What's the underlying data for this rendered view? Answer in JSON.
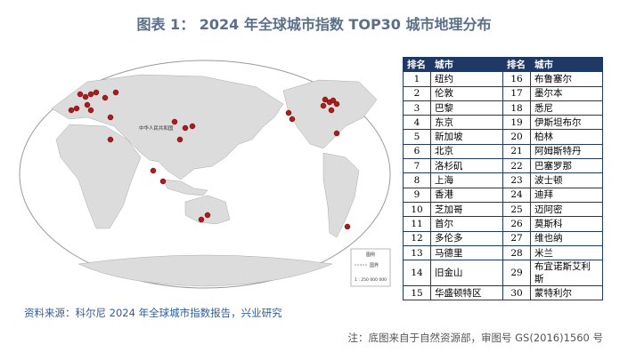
{
  "header": {
    "title": "图表 1：  2024 年全球城市指数 TOP30 城市地理分布"
  },
  "map": {
    "labels": [
      "中华人民共和国",
      "图例",
      "国界",
      "1 : 250 000 000"
    ]
  },
  "table": {
    "headers": [
      "排名",
      "城市",
      "排名",
      "城市"
    ],
    "rows": [
      [
        "1",
        "纽约",
        "16",
        "布鲁塞尔"
      ],
      [
        "2",
        "伦敦",
        "17",
        "墨尔本"
      ],
      [
        "3",
        "巴黎",
        "18",
        "悉尼"
      ],
      [
        "4",
        "东京",
        "19",
        "伊斯坦布尔"
      ],
      [
        "5",
        "新加坡",
        "20",
        "柏林"
      ],
      [
        "6",
        "北京",
        "21",
        "阿姆斯特丹"
      ],
      [
        "7",
        "洛杉矶",
        "22",
        "巴塞罗那"
      ],
      [
        "8",
        "上海",
        "23",
        "波士顿"
      ],
      [
        "9",
        "香港",
        "24",
        "迪拜"
      ],
      [
        "10",
        "芝加哥",
        "25",
        "迈阿密"
      ],
      [
        "11",
        "首尔",
        "26",
        "莫斯科"
      ],
      [
        "12",
        "多伦多",
        "27",
        "维也纳"
      ],
      [
        "13",
        "马德里",
        "28",
        "米兰"
      ],
      [
        "14",
        "旧金山",
        "29",
        "布宜诺斯艾利斯"
      ],
      [
        "15",
        "华盛顿特区",
        "30",
        "蒙特利尔"
      ]
    ]
  },
  "source": "资料来源：科尔尼 2024 年全球城市指数报告，兴业研究",
  "note": "注：底图来自于自然资源部，审图号 GS(2016)1560 号"
}
